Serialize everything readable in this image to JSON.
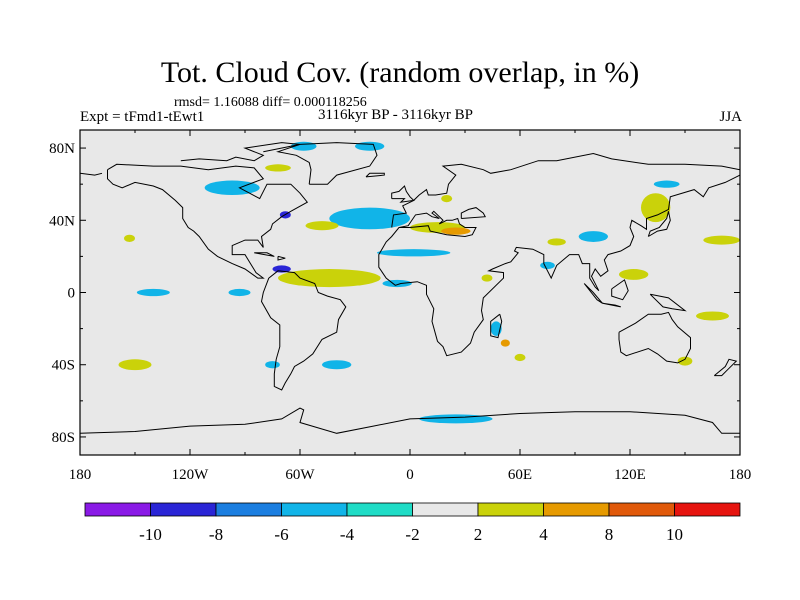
{
  "chart_data": {
    "type": "heatmap",
    "title": "Tot. Cloud Cov. (random overlap, in %)",
    "stats": "rmsd= 1.16088 diff= 0.000118256",
    "experiment": "Expt = tFmd1-tEwt1",
    "period": "3116kyr BP - 3116kyr BP",
    "season": "JJA",
    "x_ticks": [
      "180",
      "120W",
      "60W",
      "0",
      "60E",
      "120E",
      "180"
    ],
    "y_ticks": [
      "80N",
      "40N",
      "0",
      "40S",
      "80S"
    ],
    "xlim": [
      -180,
      180
    ],
    "ylim": [
      -90,
      90
    ],
    "colorbar": {
      "labels": [
        "-10",
        "-8",
        "-6",
        "-4",
        "-2",
        "2",
        "4",
        "8",
        "10"
      ],
      "colors": [
        "#8a1ae6",
        "#2a25d6",
        "#1b7ee0",
        "#11b4e8",
        "#1fdcc6",
        "#e8e8e8",
        "#cad20a",
        "#e69a00",
        "#e0590a",
        "#e6140f"
      ]
    },
    "anomaly_regions": [
      {
        "lon": -58,
        "lat": 81,
        "rx": 7,
        "ry": 2.5,
        "class": "-4"
      },
      {
        "lon": -22,
        "lat": 81,
        "rx": 8,
        "ry": 2.5,
        "class": "-4"
      },
      {
        "lon": -72,
        "lat": 69,
        "rx": 7,
        "ry": 2,
        "class": "4"
      },
      {
        "lon": -97,
        "lat": 58,
        "rx": 15,
        "ry": 4,
        "class": "-4"
      },
      {
        "lon": -22,
        "lat": 41,
        "rx": 22,
        "ry": 6,
        "class": "-4"
      },
      {
        "lon": -48,
        "lat": 37,
        "rx": 9,
        "ry": 2.5,
        "class": "4"
      },
      {
        "lon": -153,
        "lat": 30,
        "rx": 3,
        "ry": 2,
        "class": "4"
      },
      {
        "lon": 15,
        "lat": 36,
        "rx": 15,
        "ry": 3,
        "class": "4"
      },
      {
        "lon": 25,
        "lat": 34,
        "rx": 8,
        "ry": 2,
        "class": "8"
      },
      {
        "lon": 2,
        "lat": 22,
        "rx": 20,
        "ry": 2,
        "class": "-4"
      },
      {
        "lon": -44,
        "lat": 8,
        "rx": 28,
        "ry": 5,
        "class": "4"
      },
      {
        "lon": -70,
        "lat": 13,
        "rx": 5,
        "ry": 2,
        "class": "-8"
      },
      {
        "lon": -140,
        "lat": 0,
        "rx": 9,
        "ry": 2,
        "class": "-4"
      },
      {
        "lon": -93,
        "lat": 0,
        "rx": 6,
        "ry": 2,
        "class": "-4"
      },
      {
        "lon": -7,
        "lat": 5,
        "rx": 8,
        "ry": 2,
        "class": "-4"
      },
      {
        "lon": 42,
        "lat": 8,
        "rx": 3,
        "ry": 2,
        "class": "4"
      },
      {
        "lon": 80,
        "lat": 28,
        "rx": 5,
        "ry": 2,
        "class": "4"
      },
      {
        "lon": 75,
        "lat": 15,
        "rx": 4,
        "ry": 2,
        "class": "-4"
      },
      {
        "lon": 100,
        "lat": 31,
        "rx": 8,
        "ry": 3,
        "class": "-4"
      },
      {
        "lon": 134,
        "lat": 47,
        "rx": 8,
        "ry": 8,
        "class": "4"
      },
      {
        "lon": 170,
        "lat": 29,
        "rx": 10,
        "ry": 2.5,
        "class": "4"
      },
      {
        "lon": 140,
        "lat": 60,
        "rx": 7,
        "ry": 2,
        "class": "-4"
      },
      {
        "lon": 122,
        "lat": 10,
        "rx": 8,
        "ry": 3,
        "class": "4"
      },
      {
        "lon": 165,
        "lat": -13,
        "rx": 9,
        "ry": 2.5,
        "class": "4"
      },
      {
        "lon": 150,
        "lat": -38,
        "rx": 4,
        "ry": 2.5,
        "class": "4"
      },
      {
        "lon": -150,
        "lat": -40,
        "rx": 9,
        "ry": 3,
        "class": "4"
      },
      {
        "lon": -40,
        "lat": -40,
        "rx": 8,
        "ry": 2.5,
        "class": "-4"
      },
      {
        "lon": 25,
        "lat": -70,
        "rx": 20,
        "ry": 2.5,
        "class": "-4"
      },
      {
        "lon": 47,
        "lat": -20,
        "rx": 3,
        "ry": 4,
        "class": "-4"
      },
      {
        "lon": 52,
        "lat": -28,
        "rx": 2.5,
        "ry": 2,
        "class": "8"
      },
      {
        "lon": 60,
        "lat": -36,
        "rx": 3,
        "ry": 2,
        "class": "4"
      },
      {
        "lon": -75,
        "lat": -40,
        "rx": 4,
        "ry": 2,
        "class": "-4"
      },
      {
        "lon": 20,
        "lat": 52,
        "rx": 3,
        "ry": 2,
        "class": "4"
      },
      {
        "lon": -68,
        "lat": 43,
        "rx": 3,
        "ry": 2,
        "class": "-8"
      }
    ]
  }
}
